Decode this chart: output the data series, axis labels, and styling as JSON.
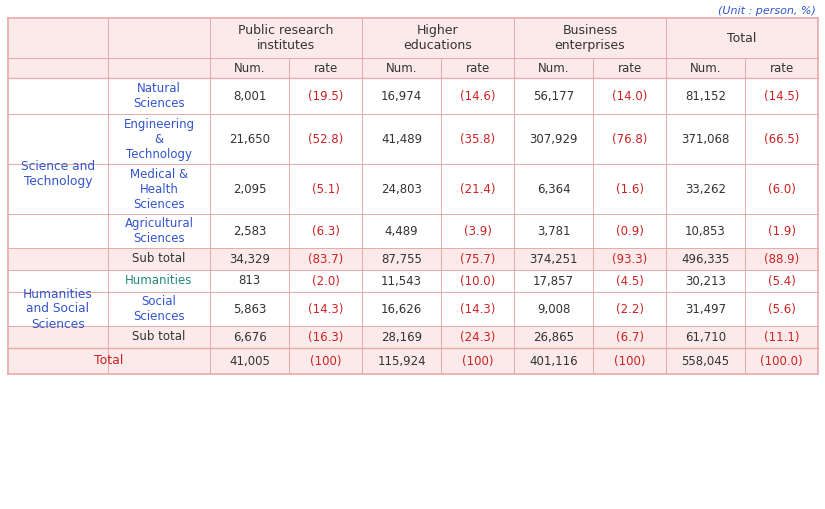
{
  "unit_label": "(Unit : person, %)",
  "background_color": "#ffffff",
  "header_bg": "#fceaea",
  "white_bg": "#ffffff",
  "border_color": "#e8aaaa",
  "text_dark": "#333333",
  "text_blue": "#3355cc",
  "text_teal": "#228877",
  "text_red": "#cc2222",
  "col_headers_main": [
    "Public research\ninstitutes",
    "Higher\neducations",
    "Business\nenterprises",
    "Total"
  ],
  "col_headers_sub": [
    "Num.",
    "rate",
    "Num.",
    "rate",
    "Num.",
    "rate",
    "Num.",
    "rate"
  ],
  "row_groups": [
    {
      "group_label": "Science and\nTechnology",
      "group_label_color": "#3355cc",
      "rows": [
        {
          "label": "Natural\nSciences",
          "label_color": "#3355cc",
          "values": [
            "8,001",
            "(19.5)",
            "16,974",
            "(14.6)",
            "56,177",
            "(14.0)",
            "81,152",
            "(14.5)"
          ],
          "is_subtotal": false
        },
        {
          "label": "Engineering\n&\nTechnology",
          "label_color": "#3355cc",
          "values": [
            "21,650",
            "(52.8)",
            "41,489",
            "(35.8)",
            "307,929",
            "(76.8)",
            "371,068",
            "(66.5)"
          ],
          "is_subtotal": false
        },
        {
          "label": "Medical &\nHealth\nSciences",
          "label_color": "#3355cc",
          "values": [
            "2,095",
            "(5.1)",
            "24,803",
            "(21.4)",
            "6,364",
            "(1.6)",
            "33,262",
            "(6.0)"
          ],
          "is_subtotal": false
        },
        {
          "label": "Agricultural\nSciences",
          "label_color": "#3355cc",
          "values": [
            "2,583",
            "(6.3)",
            "4,489",
            "(3.9)",
            "3,781",
            "(0.9)",
            "10,853",
            "(1.9)"
          ],
          "is_subtotal": false
        },
        {
          "label": "Sub total",
          "label_color": "#333333",
          "values": [
            "34,329",
            "(83.7)",
            "87,755",
            "(75.7)",
            "374,251",
            "(93.3)",
            "496,335",
            "(88.9)"
          ],
          "is_subtotal": true
        }
      ]
    },
    {
      "group_label": "Humanities\nand Social\nSciences",
      "group_label_color": "#3355cc",
      "rows": [
        {
          "label": "Humanities",
          "label_color": "#228877",
          "values": [
            "813",
            "(2.0)",
            "11,543",
            "(10.0)",
            "17,857",
            "(4.5)",
            "30,213",
            "(5.4)"
          ],
          "is_subtotal": false
        },
        {
          "label": "Social\nSciences",
          "label_color": "#3355cc",
          "values": [
            "5,863",
            "(14.3)",
            "16,626",
            "(14.3)",
            "9,008",
            "(2.2)",
            "31,497",
            "(5.6)"
          ],
          "is_subtotal": false
        },
        {
          "label": "Sub total",
          "label_color": "#333333",
          "values": [
            "6,676",
            "(16.3)",
            "28,169",
            "(24.3)",
            "26,865",
            "(6.7)",
            "61,710",
            "(11.1)"
          ],
          "is_subtotal": true
        }
      ]
    }
  ],
  "total_row": {
    "label": "Total",
    "label_color": "#cc2222",
    "values": [
      "41,005",
      "(100)",
      "115,924",
      "(100)",
      "401,116",
      "(100)",
      "558,045",
      "(100.0)"
    ]
  },
  "value_color_num": "#333333",
  "value_color_rate": "#cc2222"
}
